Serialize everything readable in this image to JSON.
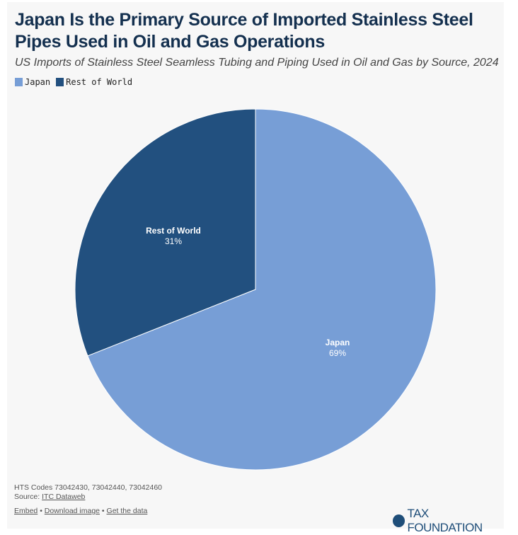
{
  "title": "Japan Is the Primary Source of Imported Stainless Steel Pipes Used in Oil and Gas Operations",
  "subtitle": "US Imports of Stainless Steel Seamless Tubing and Piping Used in Oil and Gas by Source, 2024",
  "chart_data": {
    "type": "pie",
    "title": "Japan Is the Primary Source of Imported Stainless Steel Pipes Used in Oil and Gas Operations",
    "legend_placement": "top-left",
    "slices": [
      {
        "label": "Japan",
        "value": 69,
        "display": "69%",
        "color": "#779ed6"
      },
      {
        "label": "Rest of World",
        "value": 31,
        "display": "31%",
        "color": "#22507f"
      }
    ]
  },
  "footer": {
    "hts": "HTS Codes 73042430, 73042440, 73042460",
    "source_label": "Source: ",
    "source_link": "ITC Dataweb",
    "embed": "Embed",
    "download": "Download image",
    "getdata": "Get the data",
    "sep": " • ",
    "brand": "TAX FOUNDATION"
  }
}
